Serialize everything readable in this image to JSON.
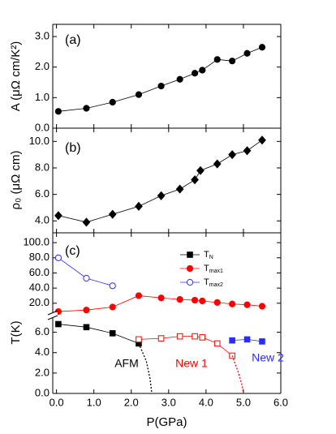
{
  "chart_data": [
    {
      "type": "line",
      "label": "(a)",
      "ylabel": "A (μΩ cm/K²)",
      "xlim": [
        -0.1,
        6.0
      ],
      "ylim": [
        0,
        3.4
      ],
      "yticks": [
        {
          "value": 0,
          "label": "0.0"
        },
        {
          "value": 1,
          "label": "1.0"
        },
        {
          "value": 2,
          "label": "2.0"
        },
        {
          "value": 3,
          "label": "3.0"
        }
      ],
      "series": [
        {
          "color": "#000000",
          "marker": "circle",
          "filled": true,
          "x": [
            0.05,
            0.8,
            1.5,
            2.2,
            2.8,
            3.3,
            3.7,
            3.9,
            4.3,
            4.7,
            5.1,
            5.5
          ],
          "values": [
            0.55,
            0.65,
            0.85,
            1.1,
            1.38,
            1.6,
            1.8,
            1.9,
            2.25,
            2.2,
            2.45,
            2.65
          ]
        }
      ]
    },
    {
      "type": "line",
      "label": "(b)",
      "ylabel": "ρ₀ (μΩ cm)",
      "xlim": [
        -0.1,
        6.0
      ],
      "ylim": [
        3.1,
        11.0
      ],
      "yticks": [
        {
          "value": 4,
          "label": "4.0"
        },
        {
          "value": 6,
          "label": "6.0"
        },
        {
          "value": 8,
          "label": "8.0"
        },
        {
          "value": 10,
          "label": "10.0"
        }
      ],
      "series": [
        {
          "color": "#000000",
          "marker": "diamond",
          "filled": true,
          "x": [
            0.05,
            0.8,
            1.5,
            2.2,
            2.8,
            3.3,
            3.7,
            3.85,
            4.3,
            4.7,
            5.1,
            5.5
          ],
          "values": [
            4.4,
            3.9,
            4.5,
            5.1,
            5.9,
            6.4,
            7.1,
            7.8,
            8.3,
            9.0,
            9.3,
            10.1
          ]
        }
      ]
    },
    {
      "type": "line",
      "label": "(c)",
      "ylabel": "T(K)",
      "xlabel": "P(GPa)",
      "xlim": [
        -0.1,
        6.0
      ],
      "ylim": [
        0,
        7.4
      ],
      "y2lim": [
        8,
        113
      ],
      "xticks": [
        {
          "value": 0,
          "label": "0.0"
        },
        {
          "value": 1,
          "label": "1.0"
        },
        {
          "value": 2,
          "label": "2.0"
        },
        {
          "value": 3,
          "label": "3.0"
        },
        {
          "value": 4,
          "label": "4.0"
        },
        {
          "value": 5,
          "label": "5.0"
        },
        {
          "value": 6,
          "label": "6.0"
        }
      ],
      "yticks": [
        {
          "value": 0,
          "label": "0.0"
        },
        {
          "value": 2,
          "label": "2.0"
        },
        {
          "value": 4,
          "label": "4.0"
        },
        {
          "value": 6,
          "label": "6.0"
        }
      ],
      "y2ticks": [
        {
          "value": 20,
          "label": "20.0"
        },
        {
          "value": 40,
          "label": "40.0"
        },
        {
          "value": 60,
          "label": "60.0"
        },
        {
          "value": 80,
          "label": "80.0"
        },
        {
          "value": 100,
          "label": "100.0"
        }
      ],
      "series": [
        {
          "name": "TN",
          "color": "#000000",
          "marker": "square",
          "filled": true,
          "x": [
            0.05,
            0.8,
            1.5,
            2.2
          ],
          "values": [
            6.8,
            6.5,
            5.9,
            4.9
          ]
        },
        {
          "name": "Tmax1",
          "color": "#ff0000",
          "marker": "circle",
          "filled": true,
          "axis": "y2",
          "x": [
            0.05,
            0.8,
            1.5,
            2.2,
            2.8,
            3.3,
            3.7,
            3.9,
            4.3,
            4.7,
            5.1,
            5.5
          ],
          "values": [
            9,
            11,
            15,
            30,
            27,
            25,
            24,
            23,
            21,
            19,
            18,
            16
          ]
        },
        {
          "name": "Tmax2",
          "color": "#2b2bff",
          "marker": "circle",
          "filled": false,
          "axis": "y2",
          "x": [
            0.05,
            0.8,
            1.5
          ],
          "values": [
            80,
            53,
            43
          ]
        },
        {
          "color": "#ff0000",
          "marker": "square",
          "filled": false,
          "x": [
            2.2,
            2.8,
            3.3,
            3.7,
            3.9,
            4.3,
            4.7
          ],
          "values": [
            5.3,
            5.4,
            5.6,
            5.6,
            5.5,
            4.9,
            3.7
          ]
        },
        {
          "color": "#2b2bff",
          "marker": "square",
          "filled": true,
          "x": [
            4.7,
            5.1,
            5.5
          ],
          "values": [
            5.2,
            5.3,
            5.1
          ]
        },
        {
          "color": "#000000",
          "dashed": true,
          "x": [
            2.2,
            2.4,
            2.5,
            2.55
          ],
          "values": [
            4.9,
            3.2,
            1.5,
            0
          ]
        },
        {
          "color": "#ff0000",
          "dashed": true,
          "x": [
            4.7,
            4.85,
            4.95,
            5.0
          ],
          "values": [
            3.7,
            2.2,
            1.0,
            0
          ]
        }
      ],
      "annotations": [
        {
          "text": "AFM",
          "color": "#000000"
        },
        {
          "text": "New 1",
          "color": "#ff0000"
        },
        {
          "text": "New 2",
          "color": "#2b2bff"
        }
      ]
    }
  ]
}
